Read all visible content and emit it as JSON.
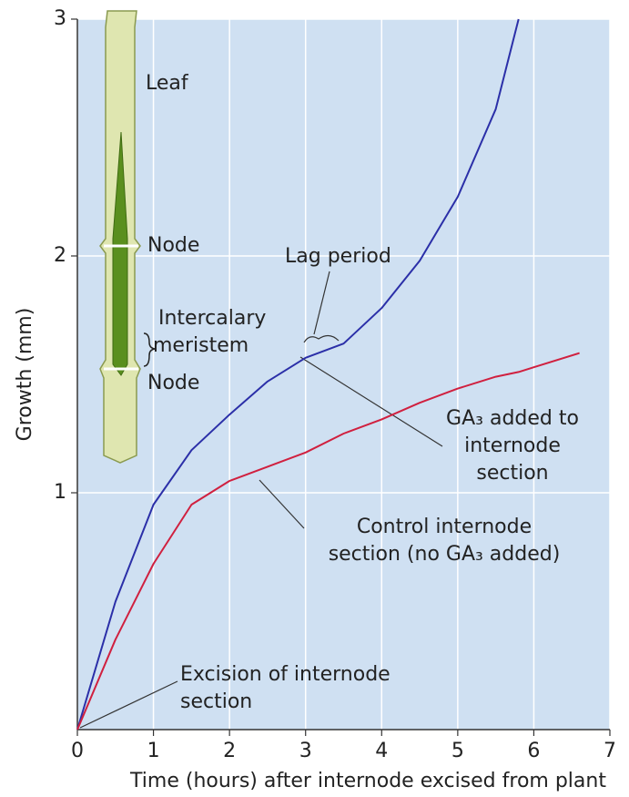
{
  "chart_data": {
    "type": "line",
    "xlabel": "Time (hours) after internode excised from plant",
    "ylabel": "Growth (mm)",
    "x": [
      0,
      0.5,
      1,
      1.5,
      2,
      2.5,
      3,
      3.5,
      4,
      4.5,
      5,
      5.5,
      5.8,
      6,
      6.6
    ],
    "series": [
      {
        "color": "#2b2fa8",
        "values": [
          0,
          0.54,
          0.95,
          1.18,
          1.33,
          1.47,
          1.57,
          1.63,
          1.78,
          1.98,
          2.25,
          2.62,
          3.0,
          null,
          null
        ]
      },
      {
        "color": "#d0203f",
        "values": [
          0,
          0.38,
          0.7,
          0.95,
          1.05,
          1.11,
          1.17,
          1.25,
          1.31,
          1.38,
          1.44,
          1.49,
          1.51,
          1.53,
          1.59
        ]
      }
    ],
    "xlim": [
      0,
      7
    ],
    "ylim": [
      0,
      3
    ],
    "xticks": [
      0,
      1,
      2,
      3,
      4,
      5,
      6,
      7
    ],
    "yticks": [
      1,
      2,
      3
    ],
    "grid": true,
    "background": "#cfe0f2",
    "annotations": [
      [
        "Lag period"
      ],
      [
        "GA₃ added to",
        "internode",
        "section"
      ],
      [
        "Control internode",
        "section (no GA₃ added)"
      ],
      [
        "Excision of internode",
        "section"
      ]
    ],
    "illustration_labels": [
      [
        "Leaf"
      ],
      [
        "Node"
      ],
      [
        "Intercalary",
        "meristem"
      ],
      [
        "Node"
      ]
    ]
  }
}
